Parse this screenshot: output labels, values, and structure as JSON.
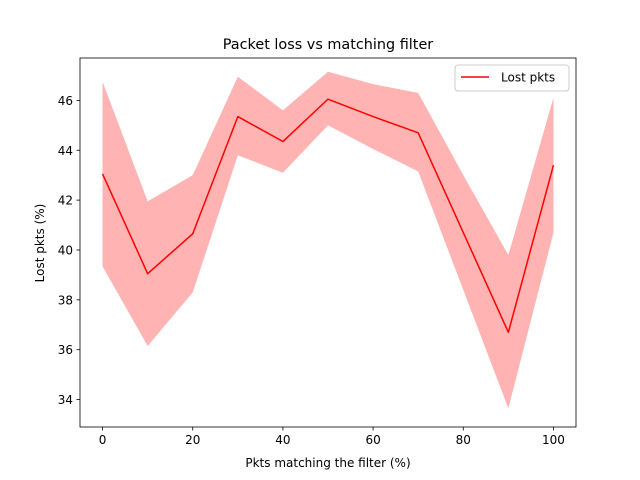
{
  "chart_data": {
    "type": "line",
    "title": "Packet loss vs matching filter",
    "xlabel": "Pkts matching the filter (%)",
    "ylabel": "Lost pkts (%)",
    "xlim": [
      -5,
      105
    ],
    "ylim": [
      32.9,
      47.7
    ],
    "xticks": [
      0,
      20,
      40,
      60,
      80,
      100
    ],
    "yticks": [
      34,
      36,
      38,
      40,
      42,
      44,
      46
    ],
    "grid": false,
    "legend_position": "top-right",
    "x": [
      0,
      10,
      20,
      30,
      40,
      50,
      60,
      70,
      80,
      90,
      100
    ],
    "series": [
      {
        "name": "Lost pkts",
        "color": "#ff0000",
        "band_color": "#ffb3b3",
        "values": [
          43.05,
          39.05,
          40.65,
          45.35,
          44.35,
          46.05,
          45.35,
          44.7,
          40.7,
          36.7,
          43.4
        ],
        "lower": [
          39.35,
          36.15,
          38.3,
          43.8,
          43.1,
          45.0,
          44.05,
          43.15,
          38.4,
          33.65,
          40.7
        ],
        "upper": [
          46.75,
          41.95,
          43.0,
          46.95,
          45.6,
          47.15,
          46.65,
          46.3,
          43.0,
          39.8,
          46.1
        ]
      }
    ]
  }
}
